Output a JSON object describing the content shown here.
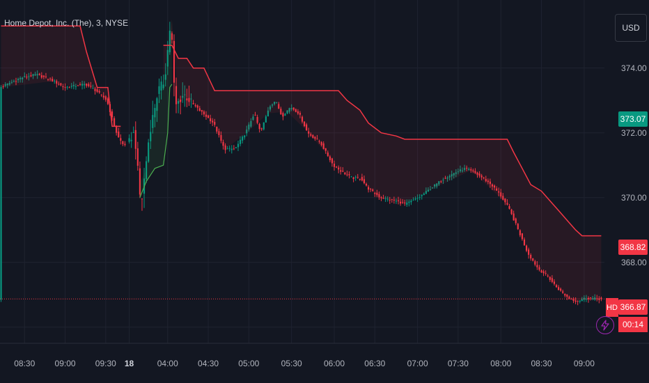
{
  "header": {
    "title": "Home Depot, Inc. (The), 3, NYSE",
    "currency": "USD"
  },
  "colors": {
    "up": "#089981",
    "down": "#f23645",
    "band_red": "#f23645",
    "band_green": "#4caf50",
    "axis_text": "#b2b5be",
    "grid": "#1f2330"
  },
  "price_badges": {
    "current": "373.07",
    "stop": "368.82",
    "last": "366.87",
    "ticker": "HD",
    "countdown": "00:14"
  },
  "chart_data": {
    "type": "candlestick",
    "title": "Home Depot, Inc. (The), 3, NYSE",
    "y_ticks": [
      "374.00",
      "372.00",
      "370.00",
      "368.00"
    ],
    "y_tick_values": [
      374,
      372,
      370,
      368
    ],
    "ylim": [
      365.5,
      376.1
    ],
    "x_ticks": [
      "08:30",
      "09:00",
      "09:30",
      "18",
      "04:00",
      "04:30",
      "05:00",
      "05:30",
      "06:00",
      "06:30",
      "07:00",
      "07:30",
      "08:00",
      "08:30",
      "09:00"
    ],
    "x_tick_slots": [
      11,
      30,
      49,
      60,
      78,
      97,
      116,
      136,
      156,
      175,
      195,
      214,
      234,
      253,
      273
    ],
    "slots_total": 283,
    "candle_slot_start": 0,
    "candle_slot_end": 281,
    "trailing_stop": {
      "red_segments": [
        {
          "slot_from": 0,
          "slot_to": 56,
          "points": [
            [
              0,
              375.3
            ],
            [
              25,
              375.3
            ],
            [
              33,
              375.3
            ],
            [
              37,
              375.3
            ],
            [
              40,
              374.5
            ],
            [
              45,
              373.4
            ],
            [
              50,
              373.4
            ],
            [
              52,
              372.2
            ],
            [
              56,
              372.2
            ]
          ]
        },
        {
          "slot_from": 76,
          "slot_to": 281,
          "points": [
            [
              76,
              374.7
            ],
            [
              80,
              374.7
            ],
            [
              83,
              374.3
            ],
            [
              87,
              374.3
            ],
            [
              90,
              374.0
            ],
            [
              95,
              374.0
            ],
            [
              100,
              373.3
            ],
            [
              105,
              373.3
            ],
            [
              115,
              373.3
            ],
            [
              125,
              373.3
            ],
            [
              134,
              373.3
            ],
            [
              144,
              373.3
            ],
            [
              158,
              373.3
            ],
            [
              162,
              373.0
            ],
            [
              168,
              372.7
            ],
            [
              172,
              372.3
            ],
            [
              178,
              372.0
            ],
            [
              185,
              371.9
            ],
            [
              189,
              371.8
            ],
            [
              200,
              371.8
            ],
            [
              220,
              371.8
            ],
            [
              237,
              371.8
            ],
            [
              240,
              371.4
            ],
            [
              244,
              370.9
            ],
            [
              248,
              370.4
            ],
            [
              253,
              370.2
            ],
            [
              257,
              369.9
            ],
            [
              261,
              369.6
            ],
            [
              265,
              369.3
            ],
            [
              269,
              369.0
            ],
            [
              272,
              368.82
            ],
            [
              281,
              368.82
            ]
          ]
        }
      ],
      "green_segment": {
        "slot_from": 65,
        "slot_to": 79,
        "points": [
          [
            65,
            370.0
          ],
          [
            68,
            370.5
          ],
          [
            72,
            370.9
          ],
          [
            76,
            371.0
          ],
          [
            78,
            372.0
          ],
          [
            79,
            373.4
          ],
          [
            80,
            373.5
          ]
        ]
      }
    },
    "candles": [],
    "last_price": 366.87,
    "current_price": 373.07,
    "stop_price": 368.82
  }
}
